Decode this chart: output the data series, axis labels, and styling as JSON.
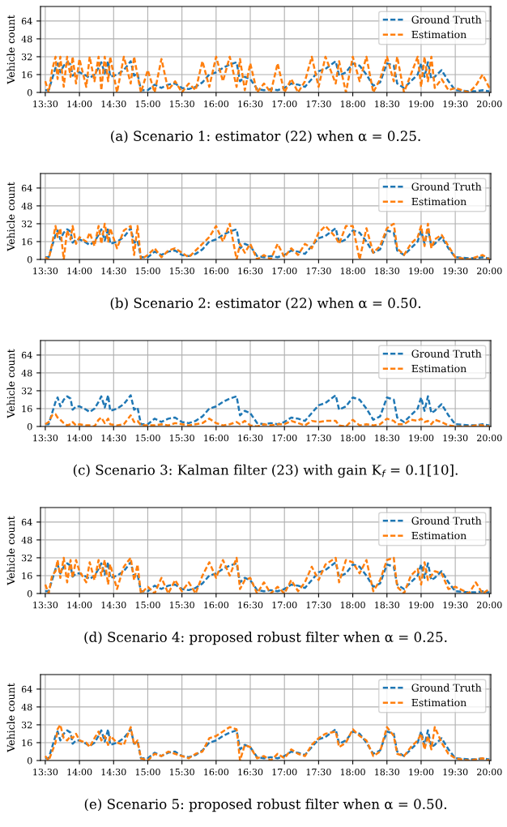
{
  "chart_data": [
    {
      "type": "line",
      "title": "(a) Scenario 1: estimator (22) when α = 0.25.",
      "ylabel": "Vehicle count",
      "xlim": [
        13.43,
        20.02
      ],
      "ylim": [
        0,
        77
      ],
      "yticks": [
        0,
        16,
        32,
        48,
        64
      ],
      "xticks": [
        {
          "value": 13.5,
          "label": "13:30"
        },
        {
          "value": 14.0,
          "label": "14:00"
        },
        {
          "value": 14.5,
          "label": "14:30"
        },
        {
          "value": 15.0,
          "label": "15:00"
        },
        {
          "value": 15.5,
          "label": "15:30"
        },
        {
          "value": 16.0,
          "label": "16:00"
        },
        {
          "value": 16.5,
          "label": "16:30"
        },
        {
          "value": 17.0,
          "label": "17:00"
        },
        {
          "value": 17.5,
          "label": "17:30"
        },
        {
          "value": 18.0,
          "label": "18:00"
        },
        {
          "value": 18.5,
          "label": "18:30"
        },
        {
          "value": 19.0,
          "label": "19:00"
        },
        {
          "value": 19.5,
          "label": "19:30"
        },
        {
          "value": 20.0,
          "label": "20:00"
        }
      ],
      "x": [
        13.5,
        13.55,
        13.6,
        13.65,
        13.68,
        13.72,
        13.77,
        13.82,
        13.87,
        13.9,
        13.95,
        14.0,
        14.1,
        14.15,
        14.22,
        14.28,
        14.32,
        14.37,
        14.42,
        14.45,
        14.55,
        14.65,
        14.75,
        14.8,
        14.85,
        14.9,
        15.0,
        15.1,
        15.2,
        15.3,
        15.4,
        15.5,
        15.6,
        15.7,
        15.8,
        15.9,
        16.0,
        16.1,
        16.2,
        16.3,
        16.35,
        16.42,
        16.5,
        16.6,
        16.7,
        16.8,
        16.9,
        17.0,
        17.1,
        17.2,
        17.3,
        17.4,
        17.5,
        17.6,
        17.75,
        17.8,
        17.9,
        18.0,
        18.1,
        18.2,
        18.3,
        18.4,
        18.5,
        18.6,
        18.65,
        18.75,
        18.85,
        18.95,
        19.0,
        19.05,
        19.1,
        19.15,
        19.2,
        19.3,
        19.4,
        19.5,
        19.7,
        19.8,
        19.9,
        20.0
      ],
      "series": [
        {
          "name": "Ground Truth",
          "color": "#1f77b4",
          "values": [
            2,
            2,
            12,
            22,
            26,
            18,
            24,
            27,
            25,
            15,
            18,
            18,
            15,
            13,
            16,
            22,
            27,
            17,
            28,
            14,
            16,
            20,
            28,
            15,
            17,
            2,
            2,
            7,
            4,
            7,
            8,
            4,
            3,
            5,
            9,
            16,
            18,
            22,
            25,
            27,
            10,
            14,
            12,
            3,
            2,
            3,
            2,
            4,
            8,
            7,
            5,
            12,
            19,
            21,
            28,
            15,
            18,
            26,
            24,
            16,
            6,
            9,
            26,
            24,
            8,
            4,
            10,
            16,
            26,
            14,
            27,
            12,
            14,
            20,
            10,
            2,
            1,
            1,
            2,
            1
          ]
        },
        {
          "name": "Estimation",
          "color": "#ff7f0e",
          "values": [
            10,
            0,
            20,
            32,
            12,
            32,
            5,
            32,
            14,
            32,
            8,
            30,
            5,
            32,
            10,
            32,
            2,
            32,
            10,
            32,
            0,
            32,
            8,
            32,
            15,
            0,
            20,
            0,
            30,
            2,
            10,
            0,
            8,
            2,
            28,
            5,
            32,
            10,
            32,
            5,
            30,
            2,
            26,
            0,
            8,
            0,
            26,
            0,
            12,
            0,
            10,
            32,
            5,
            32,
            8,
            28,
            0,
            32,
            10,
            32,
            0,
            12,
            32,
            10,
            32,
            0,
            16,
            32,
            5,
            32,
            10,
            32,
            4,
            12,
            2,
            4,
            0,
            6,
            16,
            4
          ]
        }
      ],
      "line_style": "dashed",
      "marker": "none",
      "grid": true,
      "legend": "top right"
    },
    {
      "type": "line",
      "title": "(b) Scenario 2: estimator (22) when α = 0.50.",
      "ylabel": "Vehicle count",
      "xlim": [
        13.43,
        20.02
      ],
      "ylim": [
        0,
        77
      ],
      "yticks": [
        0,
        16,
        32,
        48,
        64
      ],
      "xticks": [
        {
          "value": 13.5,
          "label": "13:30"
        },
        {
          "value": 14.0,
          "label": "14:00"
        },
        {
          "value": 14.5,
          "label": "14:30"
        },
        {
          "value": 15.0,
          "label": "15:00"
        },
        {
          "value": 15.5,
          "label": "15:30"
        },
        {
          "value": 16.0,
          "label": "16:00"
        },
        {
          "value": 16.5,
          "label": "16:30"
        },
        {
          "value": 17.0,
          "label": "17:00"
        },
        {
          "value": 17.5,
          "label": "17:30"
        },
        {
          "value": 18.0,
          "label": "18:00"
        },
        {
          "value": 18.5,
          "label": "18:30"
        },
        {
          "value": 19.0,
          "label": "19:00"
        },
        {
          "value": 19.5,
          "label": "19:30"
        },
        {
          "value": 20.0,
          "label": "20:00"
        }
      ],
      "x": [
        13.5,
        13.55,
        13.6,
        13.65,
        13.68,
        13.72,
        13.77,
        13.82,
        13.87,
        13.9,
        13.95,
        14.0,
        14.1,
        14.15,
        14.22,
        14.28,
        14.32,
        14.37,
        14.42,
        14.45,
        14.55,
        14.65,
        14.75,
        14.8,
        14.85,
        14.9,
        15.0,
        15.1,
        15.2,
        15.3,
        15.4,
        15.5,
        15.6,
        15.7,
        15.8,
        15.9,
        16.0,
        16.1,
        16.2,
        16.3,
        16.35,
        16.42,
        16.5,
        16.6,
        16.7,
        16.8,
        16.9,
        17.0,
        17.1,
        17.2,
        17.3,
        17.4,
        17.5,
        17.6,
        17.75,
        17.8,
        17.9,
        18.0,
        18.1,
        18.2,
        18.3,
        18.4,
        18.5,
        18.6,
        18.65,
        18.75,
        18.85,
        18.95,
        19.0,
        19.05,
        19.1,
        19.15,
        19.2,
        19.3,
        19.4,
        19.5,
        19.7,
        19.8,
        19.9,
        20.0
      ],
      "series": [
        {
          "name": "Ground Truth",
          "color": "#1f77b4",
          "values": [
            2,
            2,
            12,
            22,
            26,
            18,
            24,
            27,
            25,
            15,
            18,
            18,
            15,
            13,
            16,
            22,
            27,
            17,
            28,
            14,
            16,
            20,
            28,
            15,
            17,
            2,
            2,
            7,
            4,
            7,
            8,
            4,
            3,
            5,
            9,
            16,
            18,
            22,
            25,
            27,
            10,
            14,
            12,
            3,
            2,
            3,
            2,
            4,
            8,
            7,
            5,
            12,
            19,
            21,
            28,
            15,
            18,
            26,
            24,
            16,
            6,
            9,
            26,
            24,
            8,
            4,
            10,
            16,
            26,
            14,
            27,
            12,
            14,
            20,
            10,
            2,
            1,
            1,
            2,
            1
          ]
        },
        {
          "name": "Estimation",
          "color": "#ff7f0e",
          "values": [
            2,
            0,
            14,
            30,
            20,
            28,
            0,
            26,
            18,
            30,
            14,
            20,
            16,
            24,
            12,
            30,
            14,
            32,
            16,
            28,
            10,
            26,
            30,
            4,
            30,
            0,
            4,
            10,
            2,
            8,
            10,
            6,
            2,
            8,
            14,
            20,
            30,
            16,
            32,
            0,
            14,
            6,
            14,
            0,
            4,
            0,
            14,
            2,
            10,
            4,
            14,
            10,
            24,
            30,
            20,
            14,
            30,
            30,
            0,
            28,
            6,
            12,
            28,
            32,
            10,
            4,
            14,
            20,
            30,
            12,
            32,
            10,
            18,
            22,
            12,
            2,
            0,
            2,
            4,
            0
          ]
        }
      ],
      "line_style": "dashed",
      "marker": "none",
      "grid": true,
      "legend": "top right"
    },
    {
      "type": "line",
      "title": "(c) Scenario 3: Kalman filter (23) with gain K$_{f}$ = 0.1[10].",
      "ylabel": "Vehicle count",
      "xlim": [
        13.43,
        20.02
      ],
      "ylim": [
        0,
        77
      ],
      "yticks": [
        0,
        16,
        32,
        48,
        64
      ],
      "xticks": [
        {
          "value": 13.5,
          "label": "13:30"
        },
        {
          "value": 14.0,
          "label": "14:00"
        },
        {
          "value": 14.5,
          "label": "14:30"
        },
        {
          "value": 15.0,
          "label": "15:00"
        },
        {
          "value": 15.5,
          "label": "15:30"
        },
        {
          "value": 16.0,
          "label": "16:00"
        },
        {
          "value": 16.5,
          "label": "16:30"
        },
        {
          "value": 17.0,
          "label": "17:00"
        },
        {
          "value": 17.5,
          "label": "17:30"
        },
        {
          "value": 18.0,
          "label": "18:00"
        },
        {
          "value": 18.5,
          "label": "18:30"
        },
        {
          "value": 19.0,
          "label": "19:00"
        },
        {
          "value": 19.5,
          "label": "19:30"
        },
        {
          "value": 20.0,
          "label": "20:00"
        }
      ],
      "x": [
        13.5,
        13.55,
        13.6,
        13.65,
        13.68,
        13.72,
        13.77,
        13.82,
        13.87,
        13.9,
        13.95,
        14.0,
        14.1,
        14.15,
        14.22,
        14.28,
        14.32,
        14.37,
        14.42,
        14.45,
        14.55,
        14.65,
        14.75,
        14.8,
        14.85,
        14.9,
        15.0,
        15.1,
        15.2,
        15.3,
        15.4,
        15.5,
        15.6,
        15.7,
        15.8,
        15.9,
        16.0,
        16.1,
        16.2,
        16.3,
        16.35,
        16.42,
        16.5,
        16.6,
        16.7,
        16.8,
        16.9,
        17.0,
        17.1,
        17.2,
        17.3,
        17.4,
        17.5,
        17.6,
        17.75,
        17.8,
        17.9,
        18.0,
        18.1,
        18.2,
        18.3,
        18.4,
        18.5,
        18.6,
        18.65,
        18.75,
        18.85,
        18.95,
        19.0,
        19.05,
        19.1,
        19.15,
        19.2,
        19.3,
        19.4,
        19.5,
        19.7,
        19.8,
        19.9,
        20.0
      ],
      "series": [
        {
          "name": "Ground Truth",
          "color": "#1f77b4",
          "values": [
            2,
            2,
            12,
            22,
            26,
            18,
            24,
            27,
            25,
            15,
            18,
            18,
            15,
            13,
            16,
            22,
            27,
            17,
            28,
            14,
            16,
            20,
            28,
            15,
            17,
            2,
            2,
            7,
            4,
            7,
            8,
            4,
            3,
            5,
            9,
            16,
            18,
            22,
            25,
            27,
            10,
            14,
            12,
            3,
            2,
            3,
            2,
            4,
            8,
            7,
            5,
            12,
            19,
            21,
            28,
            15,
            18,
            26,
            24,
            16,
            6,
            9,
            26,
            24,
            8,
            4,
            10,
            16,
            26,
            14,
            27,
            12,
            14,
            20,
            10,
            2,
            1,
            1,
            2,
            1
          ]
        },
        {
          "name": "Estimation",
          "color": "#ff7f0e",
          "values": [
            2,
            4,
            10,
            11,
            8,
            6,
            3,
            1,
            2,
            4,
            1,
            2,
            1,
            1,
            0,
            6,
            8,
            3,
            7,
            2,
            1,
            2,
            10,
            4,
            5,
            1,
            1,
            1,
            2,
            1,
            3,
            2,
            1,
            2,
            3,
            7,
            3,
            1,
            2,
            4,
            2,
            5,
            1,
            0,
            2,
            1,
            2,
            2,
            5,
            3,
            1,
            5,
            4,
            5,
            5,
            1,
            0,
            6,
            1,
            2,
            1,
            2,
            7,
            5,
            2,
            2,
            6,
            5,
            7,
            4,
            5,
            2,
            6,
            4,
            1,
            0,
            0,
            1,
            1,
            0
          ]
        }
      ],
      "line_style": "dashed",
      "marker": "none",
      "grid": true,
      "legend": "top right"
    },
    {
      "type": "line",
      "title": "(d) Scenario 4: proposed robust filter when α = 0.25.",
      "ylabel": "Vehicle count",
      "xlim": [
        13.43,
        20.02
      ],
      "ylim": [
        0,
        77
      ],
      "yticks": [
        0,
        16,
        32,
        48,
        64
      ],
      "xticks": [
        {
          "value": 13.5,
          "label": "13:30"
        },
        {
          "value": 14.0,
          "label": "14:00"
        },
        {
          "value": 14.5,
          "label": "14:30"
        },
        {
          "value": 15.0,
          "label": "15:00"
        },
        {
          "value": 15.5,
          "label": "15:30"
        },
        {
          "value": 16.0,
          "label": "16:00"
        },
        {
          "value": 16.5,
          "label": "16:30"
        },
        {
          "value": 17.0,
          "label": "17:00"
        },
        {
          "value": 17.5,
          "label": "17:30"
        },
        {
          "value": 18.0,
          "label": "18:00"
        },
        {
          "value": 18.5,
          "label": "18:30"
        },
        {
          "value": 19.0,
          "label": "19:00"
        },
        {
          "value": 19.5,
          "label": "19:30"
        },
        {
          "value": 20.0,
          "label": "20:00"
        }
      ],
      "x": [
        13.5,
        13.55,
        13.6,
        13.65,
        13.68,
        13.72,
        13.77,
        13.82,
        13.87,
        13.9,
        13.95,
        14.0,
        14.1,
        14.15,
        14.22,
        14.28,
        14.32,
        14.37,
        14.42,
        14.45,
        14.55,
        14.65,
        14.75,
        14.8,
        14.85,
        14.9,
        15.0,
        15.1,
        15.2,
        15.3,
        15.4,
        15.5,
        15.6,
        15.7,
        15.8,
        15.9,
        16.0,
        16.1,
        16.2,
        16.3,
        16.35,
        16.42,
        16.5,
        16.6,
        16.7,
        16.8,
        16.9,
        17.0,
        17.1,
        17.2,
        17.3,
        17.4,
        17.5,
        17.6,
        17.75,
        17.8,
        17.9,
        18.0,
        18.1,
        18.2,
        18.3,
        18.4,
        18.5,
        18.6,
        18.65,
        18.75,
        18.85,
        18.95,
        19.0,
        19.05,
        19.1,
        19.15,
        19.2,
        19.3,
        19.4,
        19.5,
        19.7,
        19.8,
        19.9,
        20.0
      ],
      "series": [
        {
          "name": "Ground Truth",
          "color": "#1f77b4",
          "values": [
            2,
            2,
            12,
            22,
            26,
            18,
            24,
            27,
            25,
            15,
            18,
            18,
            15,
            13,
            16,
            22,
            27,
            17,
            28,
            14,
            16,
            20,
            28,
            15,
            17,
            2,
            2,
            7,
            4,
            7,
            8,
            4,
            3,
            5,
            9,
            16,
            18,
            22,
            25,
            27,
            10,
            14,
            12,
            3,
            2,
            3,
            2,
            4,
            8,
            7,
            5,
            12,
            19,
            21,
            28,
            15,
            18,
            26,
            24,
            16,
            6,
            9,
            26,
            24,
            8,
            4,
            10,
            16,
            26,
            14,
            27,
            12,
            14,
            20,
            10,
            2,
            1,
            1,
            2,
            1
          ]
        },
        {
          "name": "Estimation",
          "color": "#ff7f0e",
          "values": [
            8,
            0,
            16,
            20,
            30,
            14,
            32,
            10,
            30,
            14,
            30,
            20,
            10,
            28,
            12,
            30,
            16,
            30,
            8,
            26,
            4,
            24,
            32,
            12,
            26,
            0,
            6,
            0,
            14,
            0,
            12,
            2,
            10,
            0,
            16,
            28,
            14,
            30,
            16,
            32,
            4,
            12,
            14,
            0,
            10,
            0,
            6,
            0,
            12,
            2,
            10,
            24,
            12,
            26,
            32,
            10,
            30,
            28,
            18,
            30,
            2,
            12,
            30,
            32,
            6,
            0,
            16,
            22,
            8,
            28,
            12,
            16,
            20,
            18,
            4,
            6,
            0,
            10,
            0,
            4
          ]
        }
      ],
      "line_style": "dashed",
      "marker": "none",
      "grid": true,
      "legend": "top right"
    },
    {
      "type": "line",
      "title": "(e) Scenario 5: proposed robust filter when α = 0.50.",
      "ylabel": "Vehicle count",
      "xlim": [
        13.43,
        20.02
      ],
      "ylim": [
        0,
        77
      ],
      "yticks": [
        0,
        16,
        32,
        48,
        64
      ],
      "xticks": [
        {
          "value": 13.5,
          "label": "13:30"
        },
        {
          "value": 14.0,
          "label": "14:00"
        },
        {
          "value": 14.5,
          "label": "14:30"
        },
        {
          "value": 15.0,
          "label": "15:00"
        },
        {
          "value": 15.5,
          "label": "15:30"
        },
        {
          "value": 16.0,
          "label": "16:00"
        },
        {
          "value": 16.5,
          "label": "16:30"
        },
        {
          "value": 17.0,
          "label": "17:00"
        },
        {
          "value": 17.5,
          "label": "17:30"
        },
        {
          "value": 18.0,
          "label": "18:00"
        },
        {
          "value": 18.5,
          "label": "18:30"
        },
        {
          "value": 19.0,
          "label": "19:00"
        },
        {
          "value": 19.5,
          "label": "19:30"
        },
        {
          "value": 20.0,
          "label": "20:00"
        }
      ],
      "x": [
        13.5,
        13.55,
        13.6,
        13.65,
        13.68,
        13.72,
        13.77,
        13.82,
        13.87,
        13.9,
        13.95,
        14.0,
        14.1,
        14.15,
        14.22,
        14.28,
        14.32,
        14.37,
        14.42,
        14.45,
        14.55,
        14.65,
        14.75,
        14.8,
        14.85,
        14.9,
        15.0,
        15.1,
        15.2,
        15.3,
        15.4,
        15.5,
        15.6,
        15.7,
        15.8,
        15.9,
        16.0,
        16.1,
        16.2,
        16.3,
        16.35,
        16.42,
        16.5,
        16.6,
        16.7,
        16.8,
        16.9,
        17.0,
        17.1,
        17.2,
        17.3,
        17.4,
        17.5,
        17.6,
        17.75,
        17.8,
        17.9,
        18.0,
        18.1,
        18.2,
        18.3,
        18.4,
        18.5,
        18.6,
        18.65,
        18.75,
        18.85,
        18.95,
        19.0,
        19.05,
        19.1,
        19.15,
        19.2,
        19.3,
        19.4,
        19.5,
        19.7,
        19.8,
        19.9,
        20.0
      ],
      "series": [
        {
          "name": "Ground Truth",
          "color": "#1f77b4",
          "values": [
            2,
            2,
            12,
            22,
            26,
            18,
            24,
            27,
            25,
            15,
            18,
            18,
            15,
            13,
            16,
            22,
            27,
            17,
            28,
            14,
            16,
            20,
            28,
            15,
            17,
            2,
            2,
            7,
            4,
            7,
            8,
            4,
            3,
            5,
            9,
            16,
            18,
            22,
            25,
            27,
            10,
            14,
            12,
            3,
            2,
            3,
            2,
            4,
            8,
            7,
            5,
            12,
            19,
            21,
            28,
            15,
            18,
            26,
            24,
            16,
            6,
            9,
            26,
            24,
            8,
            4,
            10,
            16,
            26,
            14,
            27,
            12,
            14,
            20,
            10,
            2,
            1,
            1,
            2,
            1
          ]
        },
        {
          "name": "Estimation",
          "color": "#ff7f0e",
          "values": [
            4,
            0,
            8,
            16,
            28,
            32,
            20,
            18,
            22,
            20,
            24,
            18,
            16,
            12,
            20,
            26,
            18,
            22,
            14,
            22,
            16,
            14,
            30,
            14,
            18,
            2,
            0,
            6,
            4,
            8,
            6,
            4,
            2,
            6,
            8,
            20,
            22,
            26,
            30,
            28,
            0,
            14,
            12,
            2,
            4,
            0,
            6,
            2,
            10,
            6,
            4,
            14,
            20,
            24,
            26,
            12,
            16,
            28,
            22,
            18,
            4,
            8,
            30,
            22,
            6,
            4,
            12,
            18,
            24,
            10,
            22,
            10,
            30,
            16,
            6,
            2,
            0,
            1,
            2,
            0
          ]
        }
      ],
      "line_style": "dashed",
      "marker": "none",
      "grid": true,
      "legend": "top right"
    }
  ]
}
